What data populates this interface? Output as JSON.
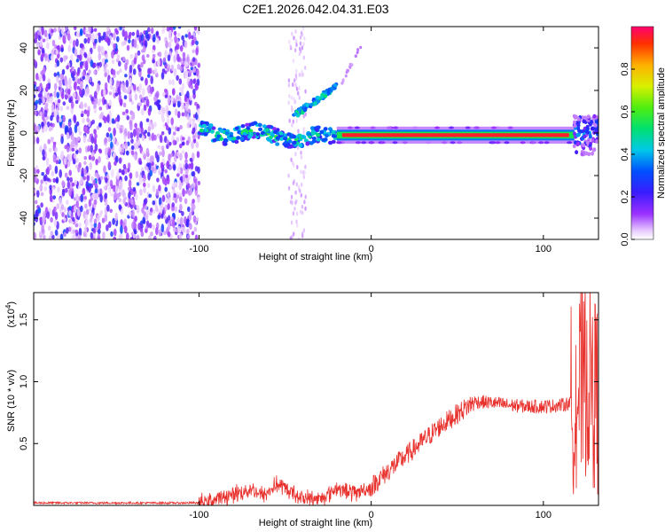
{
  "title": "C2E1.2026.042.04.31.E03",
  "chart_data": [
    {
      "type": "heatmap",
      "name": "spectrogram",
      "xlabel": "Height of straight line (km)",
      "ylabel": "Frequency (Hz)",
      "xlim": [
        -196,
        132
      ],
      "ylim": [
        -50,
        50
      ],
      "xticks": [
        -100,
        0,
        100
      ],
      "yticks": [
        -40,
        -20,
        0,
        20,
        40
      ],
      "colorbar": {
        "label": "Normalized spectral amplitude",
        "range": [
          0,
          1
        ],
        "ticks": [
          0.0,
          0.2,
          0.4,
          0.6,
          0.8
        ]
      },
      "features": [
        {
          "name": "noise-region",
          "x": [
            -196,
            -100
          ],
          "y": [
            -50,
            50
          ],
          "level": 0.15
        },
        {
          "name": "main-line",
          "x": [
            -20,
            118
          ],
          "y": -1,
          "level": 0.95
        },
        {
          "name": "low-band",
          "x": [
            -100,
            -20
          ],
          "y_start": 1,
          "y_end": -3,
          "level": 0.45
        },
        {
          "name": "rising-branch",
          "x": [
            -45,
            -20
          ],
          "y_start": 8,
          "y_end": 22,
          "level": 0.4
        },
        {
          "name": "end-burst",
          "x": [
            118,
            132
          ],
          "y": [
            -10,
            8
          ],
          "level": 0.35
        }
      ]
    },
    {
      "type": "line",
      "name": "snr",
      "xlabel": "Height of straight line (km)",
      "ylabel": "SNR (10 * v/v)",
      "y_multiplier": "(x10",
      "y_exponent": "4",
      "xlim": [
        -196,
        132
      ],
      "ylim": [
        0,
        1.72
      ],
      "xticks": [
        -100,
        0,
        100
      ],
      "yticks": [
        0.5,
        1.0,
        1.5
      ],
      "ytick_labels": [
        "0.5",
        "1.0",
        "1.5"
      ],
      "color": "#e8302c",
      "envelope": [
        [
          -196,
          0.02
        ],
        [
          -100,
          0.02
        ],
        [
          -90,
          0.05
        ],
        [
          -80,
          0.09
        ],
        [
          -70,
          0.13
        ],
        [
          -62,
          0.08
        ],
        [
          -55,
          0.17
        ],
        [
          -48,
          0.12
        ],
        [
          -40,
          0.06
        ],
        [
          -30,
          0.05
        ],
        [
          -20,
          0.14
        ],
        [
          -10,
          0.1
        ],
        [
          0,
          0.15
        ],
        [
          10,
          0.28
        ],
        [
          20,
          0.4
        ],
        [
          30,
          0.52
        ],
        [
          40,
          0.64
        ],
        [
          50,
          0.74
        ],
        [
          60,
          0.84
        ],
        [
          70,
          0.83
        ],
        [
          80,
          0.81
        ],
        [
          90,
          0.8
        ],
        [
          100,
          0.8
        ],
        [
          110,
          0.81
        ],
        [
          116,
          0.83
        ],
        [
          118,
          0.9
        ],
        [
          122,
          0.95
        ],
        [
          126,
          1.05
        ],
        [
          130,
          0.9
        ],
        [
          132,
          0.85
        ]
      ]
    }
  ]
}
